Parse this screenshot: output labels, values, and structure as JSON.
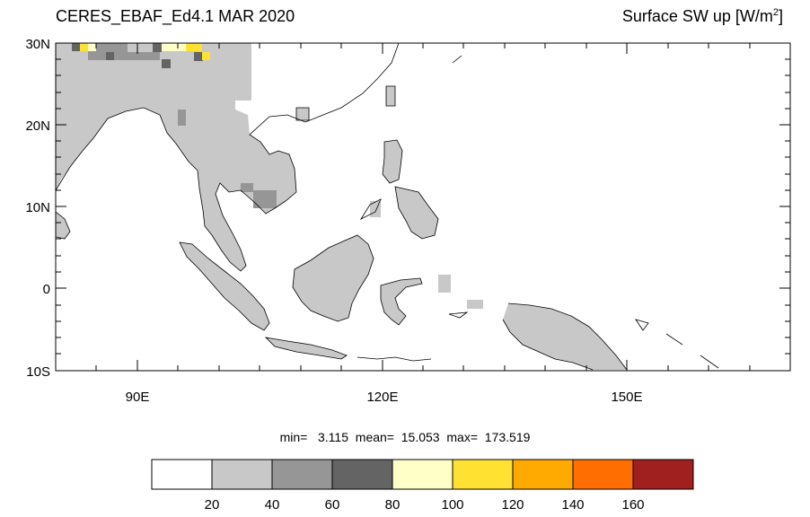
{
  "title_left": "CERES_EBAF_Ed4.1 MAR 2020",
  "title_right": "Surface SW up [W/m",
  "title_right_sup": "2",
  "title_right_close": "]",
  "axes": {
    "lat_labels": [
      "30N",
      "20N",
      "10N",
      "0",
      "10S"
    ],
    "lon_labels": [
      "90E",
      "120E",
      "150E"
    ]
  },
  "stats": {
    "min_label": "min=",
    "min": "3.115",
    "mean_label": "mean=",
    "mean": "15.053",
    "max_label": "max=",
    "max": "173.519"
  },
  "colorbar": {
    "labels": [
      "20",
      "40",
      "60",
      "80",
      "100",
      "120",
      "140",
      "160"
    ],
    "colors": [
      "#ffffff",
      "#c8c8c8",
      "#969696",
      "#646464",
      "#ffffc8",
      "#ffe132",
      "#ffaa00",
      "#ff6e00",
      "#a02020"
    ]
  },
  "map": {
    "land_color": "#c8c8c8",
    "ocean_color": "#ffffff",
    "coast_color": "#000000"
  }
}
